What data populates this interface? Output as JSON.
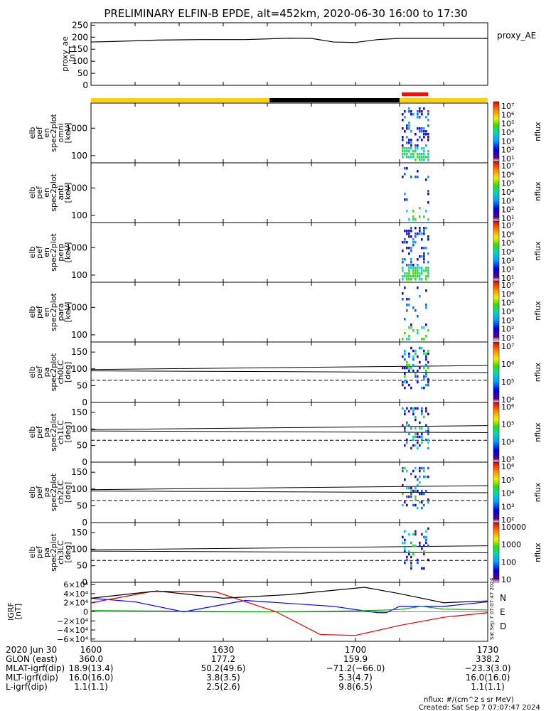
{
  "title": "PRELIMINARY ELFIN-B EPDE, alt=452km, 2020-06-30 16:00 to 17:30",
  "colors": {
    "day_bar": "#ffd400",
    "night_bar": "#000000",
    "science_bar": "#e81010",
    "grf_n": "#0000ff",
    "grf_e": "#00aa00",
    "grf_d": "#dd0000",
    "grf_total": "#000000"
  },
  "proxy_ae": {
    "ylabel": [
      "proxy_ae",
      "[nT]"
    ],
    "yticks": [
      "250",
      "200",
      "150",
      "100",
      "50",
      "0"
    ],
    "legend": "proxy_AE"
  },
  "panels": [
    {
      "ylabel": [
        "elb",
        "pef",
        "en",
        "spec2plot",
        "omni",
        "[keV]"
      ],
      "ticks": [
        "1000",
        "100"
      ]
    },
    {
      "ylabel": [
        "elb",
        "pef",
        "en",
        "spec2plot",
        "anti",
        "[keV]"
      ],
      "ticks": [
        "1000",
        "100"
      ]
    },
    {
      "ylabel": [
        "elb",
        "pef",
        "en",
        "spec2plot",
        "perp",
        "[keV]"
      ],
      "ticks": [
        "1000",
        "100"
      ]
    },
    {
      "ylabel": [
        "elb",
        "pef",
        "en",
        "spec2plot",
        "para",
        "[keV]"
      ],
      "ticks": [
        "1000",
        "100"
      ]
    },
    {
      "ylabel": [
        "elb",
        "pef",
        "pa",
        "spec2plot",
        "ch0LC",
        "[deg]"
      ],
      "ticks": [
        "150",
        "100",
        "50",
        "0"
      ]
    },
    {
      "ylabel": [
        "elb",
        "pef",
        "pa",
        "spec2plot",
        "ch1LC",
        "[deg]"
      ],
      "ticks": [
        "150",
        "100",
        "50",
        "0"
      ]
    },
    {
      "ylabel": [
        "elb",
        "pef",
        "pa",
        "spec2plot",
        "ch2LC",
        "[deg]"
      ],
      "ticks": [
        "150",
        "100",
        "50",
        "0"
      ]
    },
    {
      "ylabel": [
        "elb",
        "pef",
        "pa",
        "spec2plot",
        "ch3LC",
        "[deg]"
      ],
      "ticks": [
        "150",
        "100",
        "50",
        "0"
      ]
    }
  ],
  "colorbars": [
    {
      "labels": [
        "10⁷",
        "10⁶",
        "10⁵",
        "10⁴",
        "10³",
        "10²",
        "10¹"
      ],
      "unit": "nflux"
    },
    {
      "labels": [
        "10⁷",
        "10⁶",
        "10⁵",
        "10⁴",
        "10³",
        "10²",
        "10¹"
      ],
      "unit": "nflux"
    },
    {
      "labels": [
        "10⁷",
        "10⁶",
        "10⁵",
        "10⁴",
        "10³",
        "10²",
        "10¹"
      ],
      "unit": "nflux"
    },
    {
      "labels": [
        "10⁷",
        "10⁶",
        "10⁵",
        "10⁴",
        "10³",
        "10²",
        "10¹"
      ],
      "unit": "nflux"
    },
    {
      "labels": [
        "10⁷",
        "10⁶",
        "10⁵",
        "10⁴"
      ],
      "unit": "nflux"
    },
    {
      "labels": [
        "10⁶",
        "10⁵",
        "10⁴",
        "10³"
      ],
      "unit": "nflux"
    },
    {
      "labels": [
        "10⁶",
        "10⁵",
        "10⁴",
        "10³",
        "10²"
      ],
      "unit": "nflux"
    },
    {
      "labels": [
        "10000",
        "1000",
        "100",
        "10"
      ],
      "unit": "nflux"
    }
  ],
  "grf": {
    "ylabel": [
      "IGRF",
      "[nT]"
    ],
    "yticks": [
      "6×10⁴",
      "4×10⁴",
      "2×10⁴",
      "0",
      "−2×10⁴",
      "−4×10⁴",
      "−6×10⁴"
    ],
    "legend": [
      "N",
      "E",
      "D"
    ]
  },
  "chart_data": {
    "type": "line",
    "title": "PRELIMINARY ELFIN-B EPDE, alt=452km, 2020-06-30 16:00 to 17:30",
    "x_range": [
      "2020-06-30 16:00",
      "2020-06-30 17:30"
    ],
    "xticks": [
      "1600",
      "1630",
      "1700",
      "1730"
    ],
    "series": [
      {
        "name": "proxy_AE",
        "unit": "nT",
        "ylim": [
          0,
          260
        ],
        "x": [
          0,
          5,
          15,
          25,
          35,
          45,
          50,
          55,
          60,
          65,
          70,
          80,
          90
        ],
        "y": [
          180,
          182,
          188,
          190,
          190,
          196,
          195,
          180,
          178,
          190,
          195,
          195,
          195
        ]
      },
      {
        "name": "N",
        "unit": "nT",
        "ylim": [
          -65000,
          65000
        ],
        "x": [
          0,
          10,
          21,
          35,
          55,
          65,
          67,
          70,
          80,
          90
        ],
        "y": [
          30000,
          22000,
          0,
          25000,
          12000,
          -2000,
          -2000,
          12000,
          12000,
          22000
        ]
      },
      {
        "name": "E",
        "unit": "nT",
        "ylim": [
          -65000,
          65000
        ],
        "x": [
          0,
          20,
          40,
          60,
          70,
          75,
          80,
          90
        ],
        "y": [
          3000,
          1500,
          0,
          2000,
          5000,
          12000,
          6000,
          4000
        ]
      },
      {
        "name": "D",
        "unit": "nT",
        "ylim": [
          -65000,
          65000
        ],
        "x": [
          0,
          14,
          28,
          42,
          52,
          60,
          70,
          80,
          90
        ],
        "y": [
          20000,
          45000,
          45000,
          0,
          -50000,
          -52000,
          -30000,
          -12000,
          -2000
        ]
      }
    ],
    "total_field": {
      "ylim": [
        -65000,
        65000
      ],
      "x": [
        0,
        15,
        30,
        45,
        62,
        70,
        80,
        90
      ],
      "y": [
        30000,
        46000,
        30000,
        38000,
        54000,
        40000,
        20000,
        24000
      ]
    }
  },
  "day_night_bar": [
    {
      "kind": "day",
      "from": 0,
      "to": 40.5
    },
    {
      "kind": "night",
      "from": 40.5,
      "to": 70
    },
    {
      "kind": "day",
      "from": 70,
      "to": 90
    }
  ],
  "science_zone": {
    "from": 70.5,
    "to": 76.5
  },
  "spectrogram_interval": {
    "from": 70.5,
    "to": 76.5
  },
  "ephemeris": {
    "labels": [
      "2020 Jun 30",
      "GLON (east)",
      "MLAT-igrf(dip)",
      "MLT-igrf(dip)",
      "L-igrf(dip)"
    ],
    "columns": [
      [
        "1600",
        "360.0",
        "18.9(13.4)",
        "16.0(16.0)",
        "1.1(1.1)"
      ],
      [
        "1630",
        "177.2",
        "50.2(49.6)",
        "3.8(3.5)",
        "2.5(2.6)"
      ],
      [
        "1700",
        "159.9",
        "−71.2(−66.0)",
        "5.3(4.7)",
        "9.8(6.5)"
      ],
      [
        "1730",
        "338.2",
        "−23.3(3.0)",
        "16.0(16.0)",
        "1.1(1.1)"
      ]
    ]
  },
  "footer": {
    "units": "nflux: #/(cm^2 s sr MeV)",
    "created": "Created: Sat Sep  7 07:07:47 2024",
    "vertical_stamp": "Sat Sep  7 07:07:47 2024"
  }
}
